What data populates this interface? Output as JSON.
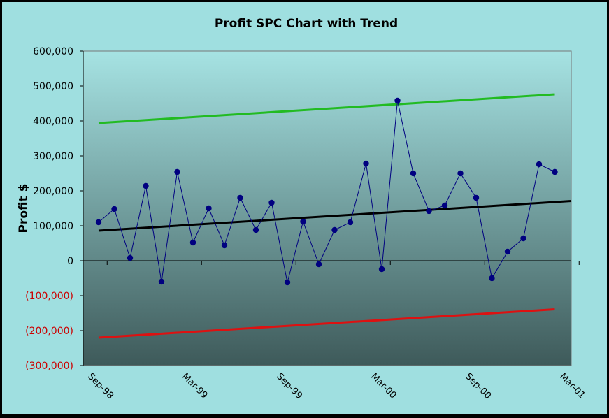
{
  "chart_data": {
    "type": "line",
    "title": "Profit SPC Chart with Trend",
    "xlabel": "",
    "ylabel": "Profit $",
    "x_tick_labels": [
      "Sep-98",
      "Mar-99",
      "Sep-99",
      "Mar-00",
      "Sep-00",
      "Mar-01"
    ],
    "y_tick_labels": [
      "600,000",
      "500,000",
      "400,000",
      "300,000",
      "200,000",
      "100,000",
      "0",
      "(100,000)",
      "(200,000)",
      "(300,000)"
    ],
    "ylim": [
      -300000,
      600000
    ],
    "grid": false,
    "legend": "none",
    "colors": {
      "data": "#000080",
      "trend": "#000000",
      "upper_limit": "#22bb22",
      "lower_limit": "#dd1111",
      "negative_tick": "#cc0000",
      "plot_top": "#a6e3e3",
      "plot_bottom": "#3e5a5a"
    },
    "x": [
      "Sep-98",
      "Oct-98",
      "Nov-98",
      "Dec-98",
      "Jan-99",
      "Feb-99",
      "Mar-99",
      "Apr-99",
      "May-99",
      "Jun-99",
      "Jul-99",
      "Aug-99",
      "Sep-99",
      "Oct-99",
      "Nov-99",
      "Dec-99",
      "Jan-00",
      "Feb-00",
      "Mar-00",
      "Apr-00",
      "May-00",
      "Jun-00",
      "Jul-00",
      "Aug-00",
      "Sep-00",
      "Oct-00",
      "Nov-00",
      "Dec-00",
      "Jan-01",
      "Feb-01"
    ],
    "series": [
      {
        "values": [
          110000,
          148000,
          8000,
          214000,
          -60000,
          254000,
          52000,
          150000,
          44000,
          180000,
          88000,
          166000,
          -62000,
          112000,
          -10000,
          88000,
          110000,
          278000,
          -24000,
          458000,
          250000,
          142000,
          158000,
          250000,
          180000,
          -50000,
          26000,
          64000,
          276000,
          254000
        ]
      }
    ],
    "trend": {
      "start": 86000,
      "end": 171000,
      "extends_to_axis_end": true
    },
    "upper_limit": {
      "start": 394000,
      "end": 476000
    },
    "lower_limit": {
      "start": -220000,
      "end": -139000
    }
  }
}
